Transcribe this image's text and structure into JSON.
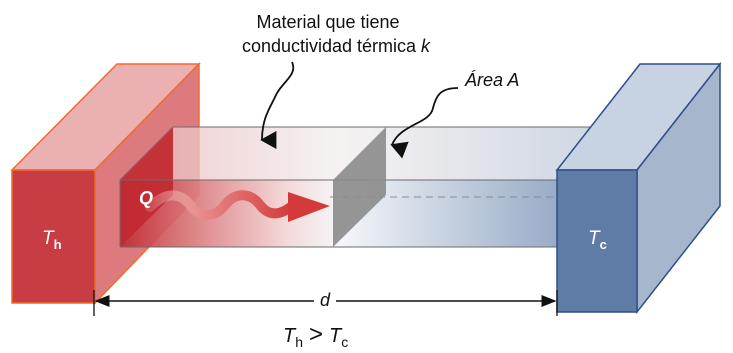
{
  "labels": {
    "material_line1": "Material que tiene",
    "material_line2": "conductividad térmica",
    "k": "k",
    "area": "Área A",
    "q": "Q",
    "th_letter": "T",
    "th_sub": "h",
    "tc_letter": "T",
    "tc_sub": "c",
    "d": "d",
    "eq_t1": "T",
    "eq_sub1": "h",
    "eq_gt": ">",
    "eq_t2": "T",
    "eq_sub2": "c"
  },
  "colors": {
    "hot_front": "#c83c43",
    "hot_side": "#d96b70",
    "hot_top": "#e9a9ac",
    "hot_edge": "#f26a2e",
    "cold_front": "#5f7ca6",
    "cold_side": "#a5b6cd",
    "cold_top": "#c7d2e2",
    "cold_edge": "#2f4f8a",
    "area_slice": "#8b8b8b",
    "arrow": "#d33b3b",
    "text": "#111111"
  }
}
